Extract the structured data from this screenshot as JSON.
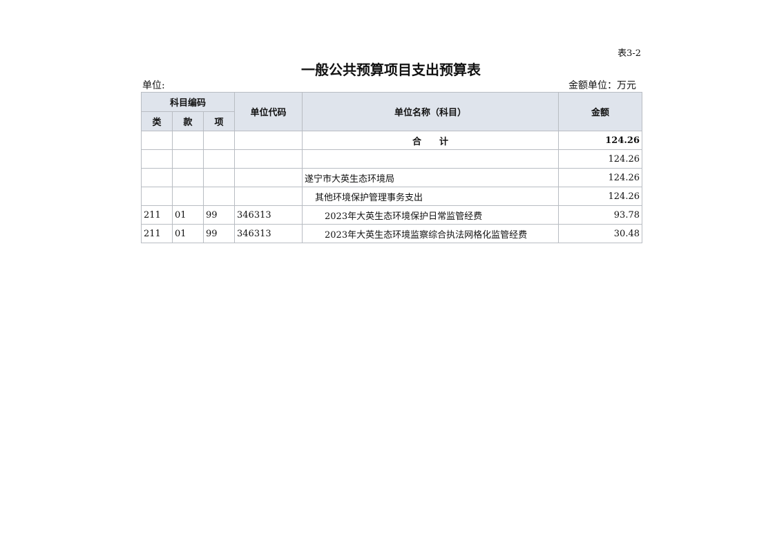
{
  "table_no": "表3-2",
  "title": "一般公共预算项目支出预算表",
  "unit_label": "单位:",
  "money_unit_label": "金额单位：万元",
  "headers": {
    "subject_code": "科目编码",
    "class": "类",
    "section": "款",
    "item": "项",
    "unit_code": "单位代码",
    "unit_name": "单位名称（科目）",
    "amount": "金额"
  },
  "total": {
    "label": "合　　计",
    "amount": "124.26"
  },
  "rows": [
    {
      "class": "",
      "section": "",
      "item": "",
      "unit_code": "",
      "name": "",
      "amount": "124.26"
    },
    {
      "class": "",
      "section": "",
      "item": "",
      "unit_code": "",
      "name": "遂宁市大英生态环境局",
      "amount": "124.26"
    },
    {
      "class": "",
      "section": "",
      "item": "",
      "unit_code": "",
      "name": "其他环境保护管理事务支出",
      "amount": "124.26"
    },
    {
      "class": "211",
      "section": "01",
      "item": "99",
      "unit_code": "346313",
      "name": "2023年大英生态环境保护日常监管经费",
      "amount": "93.78"
    },
    {
      "class": "211",
      "section": "01",
      "item": "99",
      "unit_code": "346313",
      "name": "2023年大英生态环境监察综合执法网格化监管经费",
      "amount": "30.48"
    }
  ]
}
